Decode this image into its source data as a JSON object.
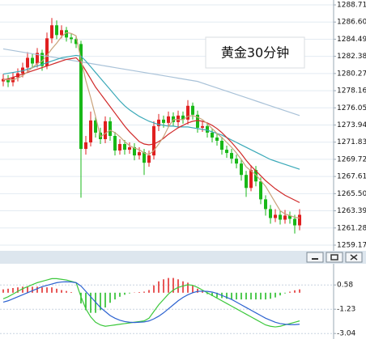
{
  "chart_data": [
    {
      "type": "candlestick",
      "annotation": "黄金30分钟",
      "up_color": "#e02020",
      "down_color": "#18b818",
      "grid": true,
      "ylim": [
        1258.57,
        1289.31
      ],
      "yticks": [
        1288.71,
        {
          "value": 1286.6,
          "label": "1286.60"
        },
        1284.49,
        1282.38,
        1280.27,
        1278.16,
        1276.05,
        1273.94,
        1271.83,
        1269.72,
        1267.61,
        {
          "value": 1265.5,
          "label": "1265.50"
        },
        1263.39,
        1261.28,
        1259.17
      ],
      "open": [
        1279.3,
        1279.6,
        1279.2,
        1279.8,
        1280.3,
        1281.0,
        1282.2,
        1281.5,
        1282.8,
        1281.2,
        1284.6,
        1286.2,
        1285.0,
        1285.6,
        1284.7,
        1284.5,
        1283.9,
        1271.0,
        1271.8,
        1274.5,
        1273.0,
        1272.2,
        1274.4,
        1272.6,
        1270.8,
        1271.6,
        1270.9,
        1271.2,
        1270.2,
        1270.6,
        1269.3,
        1270.2,
        1273.8,
        1274.6,
        1274.2,
        1275.0,
        1274.3,
        1275.1,
        1274.6,
        1276.3,
        1275.2,
        1273.6,
        1273.8,
        1273.0,
        1272.4,
        1272.0,
        1270.9,
        1270.5,
        1269.8,
        1269.2,
        1267.8,
        1266.2,
        1268.4,
        1267.0,
        1264.8,
        1263.6,
        1262.5,
        1262.9,
        1262.3,
        1262.8,
        1262.4,
        1261.6
      ],
      "high": [
        1280.2,
        1280.1,
        1280.4,
        1280.9,
        1281.6,
        1282.9,
        1282.7,
        1283.4,
        1283.2,
        1285.3,
        1287.1,
        1286.8,
        1286.2,
        1286.0,
        1285.2,
        1284.9,
        1284.3,
        1272.6,
        1275.6,
        1275.0,
        1273.6,
        1275.0,
        1274.9,
        1273.1,
        1272.2,
        1272.1,
        1271.8,
        1271.7,
        1271.2,
        1271.0,
        1270.8,
        1274.4,
        1275.3,
        1275.1,
        1275.6,
        1275.5,
        1275.7,
        1275.6,
        1277.0,
        1276.7,
        1275.7,
        1274.4,
        1274.2,
        1273.5,
        1272.9,
        1272.5,
        1271.4,
        1271.0,
        1270.3,
        1269.7,
        1268.3,
        1269.0,
        1268.9,
        1267.5,
        1265.3,
        1264.1,
        1263.6,
        1263.4,
        1263.5,
        1263.3,
        1262.9,
        1263.6
      ],
      "low": [
        1278.7,
        1278.6,
        1278.7,
        1279.3,
        1279.8,
        1280.5,
        1280.9,
        1281.0,
        1280.6,
        1280.8,
        1284.0,
        1284.5,
        1284.6,
        1284.2,
        1284.0,
        1283.4,
        1265.0,
        1270.3,
        1271.3,
        1272.4,
        1271.6,
        1271.7,
        1272.0,
        1270.2,
        1270.3,
        1270.3,
        1270.4,
        1269.6,
        1269.7,
        1267.8,
        1268.8,
        1269.7,
        1273.2,
        1273.6,
        1273.7,
        1273.8,
        1273.7,
        1274.1,
        1274.0,
        1274.6,
        1273.0,
        1273.1,
        1272.4,
        1271.8,
        1271.4,
        1270.3,
        1269.9,
        1269.2,
        1268.6,
        1267.1,
        1265.1,
        1265.8,
        1266.4,
        1264.2,
        1262.8,
        1261.8,
        1262.0,
        1261.7,
        1261.8,
        1261.8,
        1260.6,
        1261.0
      ],
      "close": [
        1279.6,
        1279.2,
        1279.8,
        1280.3,
        1281.0,
        1282.2,
        1281.5,
        1282.8,
        1281.2,
        1284.6,
        1286.2,
        1285.0,
        1285.6,
        1284.7,
        1284.5,
        1283.9,
        1271.0,
        1271.8,
        1274.5,
        1273.0,
        1272.2,
        1274.4,
        1272.6,
        1270.8,
        1271.6,
        1270.9,
        1271.2,
        1270.2,
        1270.6,
        1269.3,
        1270.2,
        1273.8,
        1274.6,
        1274.2,
        1275.0,
        1274.3,
        1275.1,
        1274.6,
        1276.3,
        1275.2,
        1273.6,
        1273.8,
        1273.0,
        1272.4,
        1272.0,
        1270.9,
        1270.5,
        1269.8,
        1269.2,
        1267.8,
        1266.2,
        1268.4,
        1267.0,
        1264.8,
        1263.6,
        1262.5,
        1262.9,
        1262.3,
        1262.8,
        1262.4,
        1261.6,
        1262.9
      ],
      "lines": [
        {
          "color": "#a9c2d8",
          "values": [
            1283.3,
            1283.2,
            1283.1,
            1283.0,
            1282.9,
            1282.8,
            1282.7,
            1282.6,
            1282.5,
            1282.4,
            1282.3,
            1282.2,
            1282.1,
            1282.0,
            1281.9,
            1281.8,
            1281.7,
            1281.6,
            1281.5,
            1281.4,
            1281.3,
            1281.2,
            1281.1,
            1281.0,
            1280.9,
            1280.8,
            1280.7,
            1280.6,
            1280.5,
            1280.4,
            1280.3,
            1280.2,
            1280.1,
            1280.0,
            1279.9,
            1279.8,
            1279.7,
            1279.6,
            1279.5,
            1279.4,
            1279.3,
            1279.1,
            1278.9,
            1278.7,
            1278.5,
            1278.3,
            1278.1,
            1277.9,
            1277.7,
            1277.5,
            1277.3,
            1277.1,
            1276.9,
            1276.7,
            1276.5,
            1276.3,
            1276.1,
            1275.9,
            1275.7,
            1275.5,
            1275.3,
            1275.1
          ]
        },
        {
          "color": "#3aa9b8",
          "values": [
            1280.2,
            1280.3,
            1280.4,
            1280.5,
            1280.6,
            1280.8,
            1281.0,
            1281.2,
            1281.4,
            1281.6,
            1281.8,
            1282.0,
            1282.2,
            1282.3,
            1282.4,
            1282.5,
            1282.4,
            1281.8,
            1281.1,
            1280.4,
            1279.7,
            1279.0,
            1278.3,
            1277.6,
            1276.9,
            1276.3,
            1275.8,
            1275.4,
            1275.0,
            1274.7,
            1274.4,
            1274.2,
            1274.0,
            1273.9,
            1273.8,
            1273.8,
            1273.7,
            1273.7,
            1273.7,
            1273.6,
            1273.5,
            1273.4,
            1273.3,
            1273.1,
            1272.9,
            1272.7,
            1272.4,
            1272.1,
            1271.8,
            1271.5,
            1271.2,
            1270.9,
            1270.6,
            1270.3,
            1270.0,
            1269.7,
            1269.5,
            1269.3,
            1269.1,
            1268.9,
            1268.7,
            1268.5
          ]
        },
        {
          "color": "#d02828",
          "values": [
            1279.5,
            1279.6,
            1279.8,
            1280.0,
            1280.2,
            1280.4,
            1280.6,
            1280.8,
            1281.0,
            1281.2,
            1281.4,
            1281.6,
            1281.8,
            1282.0,
            1282.1,
            1282.2,
            1281.6,
            1280.6,
            1279.6,
            1278.6,
            1277.8,
            1277.0,
            1276.2,
            1275.4,
            1274.6,
            1273.8,
            1273.1,
            1272.5,
            1271.9,
            1271.6,
            1271.5,
            1271.6,
            1271.9,
            1272.3,
            1272.8,
            1273.2,
            1273.6,
            1273.9,
            1274.2,
            1274.4,
            1274.5,
            1274.4,
            1274.2,
            1273.9,
            1273.5,
            1273.0,
            1272.4,
            1271.8,
            1271.1,
            1270.4,
            1269.6,
            1268.9,
            1268.3,
            1267.7,
            1267.1,
            1266.6,
            1266.1,
            1265.7,
            1265.3,
            1265.0,
            1264.7,
            1264.4
          ]
        },
        {
          "color": "#c9a27a",
          "values": [
            1279.5,
            1279.5,
            1279.5,
            1279.7,
            1280.0,
            1280.5,
            1281.0,
            1281.5,
            1281.8,
            1282.5,
            1283.3,
            1284.0,
            1284.8,
            1285.3,
            1285.2,
            1284.9,
            1282.0,
            1279.4,
            1277.3,
            1275.0,
            1272.5,
            1272.9,
            1273.3,
            1273.0,
            1272.5,
            1271.9,
            1271.4,
            1271.1,
            1270.9,
            1270.5,
            1270.3,
            1270.8,
            1271.6,
            1272.5,
            1273.7,
            1274.6,
            1274.6,
            1274.6,
            1275.0,
            1275.1,
            1274.9,
            1274.6,
            1274.1,
            1273.5,
            1272.9,
            1272.4,
            1271.8,
            1271.2,
            1270.5,
            1269.7,
            1268.8,
            1268.3,
            1267.8,
            1267.1,
            1266.4,
            1265.4,
            1264.4,
            1263.4,
            1263.0,
            1262.8,
            1262.6,
            1262.5
          ]
        }
      ]
    },
    {
      "type": "macd",
      "grid": true,
      "ylim": [
        -3.45,
        2.16
      ],
      "yticks": [
        0.58,
        -1.23,
        -3.04
      ],
      "histogram": {
        "up_color": "#e02020",
        "down_color": "#18b818",
        "values": [
          0.25,
          0.3,
          0.35,
          0.4,
          0.45,
          0.45,
          0.45,
          0.45,
          0.4,
          0.4,
          0.4,
          0.3,
          0.2,
          0.13,
          0.05,
          0.0,
          -0.8,
          -1.3,
          -1.5,
          -1.5,
          -1.3,
          -1.1,
          -0.75,
          -0.5,
          -0.3,
          -0.15,
          -0.05,
          0.02,
          0.05,
          0.08,
          0.2,
          0.55,
          0.85,
          1.0,
          1.1,
          1.1,
          1.0,
          0.85,
          0.75,
          0.55,
          0.3,
          0.08,
          -0.1,
          -0.25,
          -0.35,
          -0.4,
          -0.45,
          -0.5,
          -0.5,
          -0.5,
          -0.5,
          -0.5,
          -0.5,
          -0.5,
          -0.5,
          -0.45,
          -0.35,
          -0.2,
          -0.05,
          0.08,
          0.18,
          0.25
        ]
      },
      "series": [
        {
          "color": "#3cc83c",
          "values": [
            -0.45,
            -0.3,
            -0.1,
            0.1,
            0.3,
            0.45,
            0.6,
            0.75,
            0.85,
            0.95,
            1.05,
            1.05,
            1.0,
            0.95,
            0.85,
            0.75,
            -0.3,
            -1.2,
            -1.8,
            -2.2,
            -2.4,
            -2.5,
            -2.45,
            -2.4,
            -2.35,
            -2.3,
            -2.25,
            -2.2,
            -2.15,
            -2.1,
            -1.9,
            -1.4,
            -0.9,
            -0.5,
            -0.1,
            0.2,
            0.4,
            0.5,
            0.6,
            0.55,
            0.4,
            0.2,
            0.0,
            -0.2,
            -0.4,
            -0.6,
            -0.8,
            -1.0,
            -1.2,
            -1.4,
            -1.6,
            -1.8,
            -2.0,
            -2.2,
            -2.4,
            -2.5,
            -2.55,
            -2.5,
            -2.4,
            -2.3,
            -2.2,
            -2.1
          ]
        },
        {
          "color": "#2c62d0",
          "values": [
            -0.7,
            -0.6,
            -0.45,
            -0.3,
            -0.15,
            0.0,
            0.15,
            0.3,
            0.45,
            0.55,
            0.65,
            0.75,
            0.8,
            0.82,
            0.8,
            0.75,
            0.5,
            0.1,
            -0.3,
            -0.7,
            -1.1,
            -1.4,
            -1.7,
            -1.9,
            -2.05,
            -2.15,
            -2.2,
            -2.22,
            -2.2,
            -2.18,
            -2.1,
            -1.95,
            -1.75,
            -1.5,
            -1.2,
            -0.9,
            -0.6,
            -0.35,
            -0.15,
            0.0,
            0.1,
            0.12,
            0.1,
            0.05,
            -0.05,
            -0.2,
            -0.35,
            -0.5,
            -0.7,
            -0.9,
            -1.1,
            -1.3,
            -1.5,
            -1.7,
            -1.9,
            -2.05,
            -2.2,
            -2.3,
            -2.35,
            -2.38,
            -2.38,
            -2.35
          ]
        }
      ]
    }
  ]
}
